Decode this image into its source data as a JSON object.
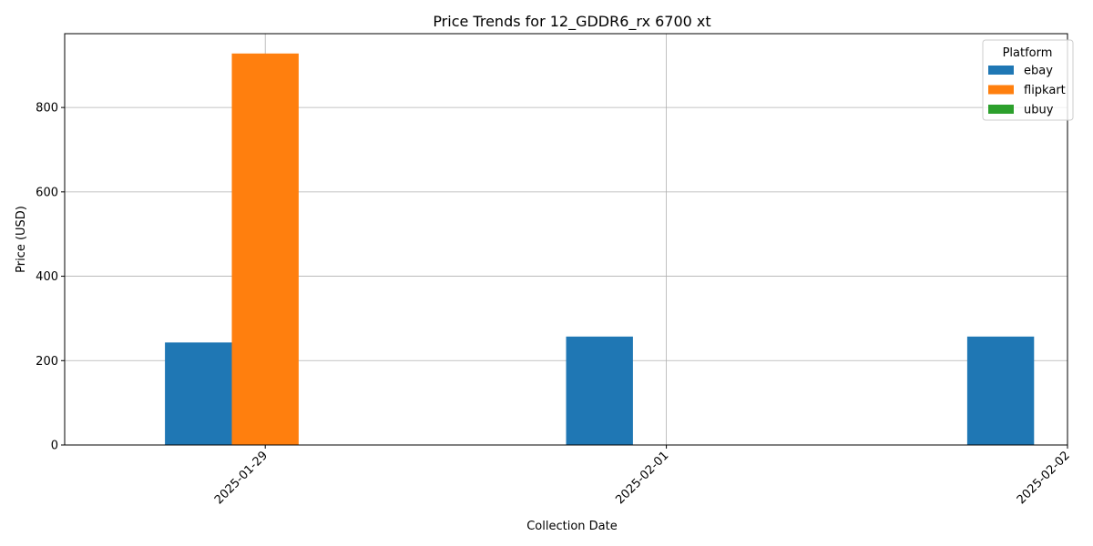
{
  "chart_data": {
    "type": "bar",
    "title": "Price Trends for 12_GDDR6_rx 6700 xt",
    "xlabel": "Collection Date",
    "ylabel": "Price (USD)",
    "categories": [
      "2025-01-29",
      "2025-02-01",
      "2025-02-02"
    ],
    "series": [
      {
        "name": "ebay",
        "color": "#1f77b4",
        "values": [
          243,
          257,
          257
        ]
      },
      {
        "name": "flipkart",
        "color": "#ff7f0e",
        "values": [
          928,
          0,
          0
        ]
      },
      {
        "name": "ubuy",
        "color": "#2ca02c",
        "values": [
          0,
          0,
          0
        ]
      }
    ],
    "ylim": [
      0,
      975
    ],
    "yticks": [
      0,
      200,
      400,
      600,
      800
    ],
    "grid": true,
    "legend": {
      "title": "Platform",
      "placement": "top-right"
    }
  }
}
